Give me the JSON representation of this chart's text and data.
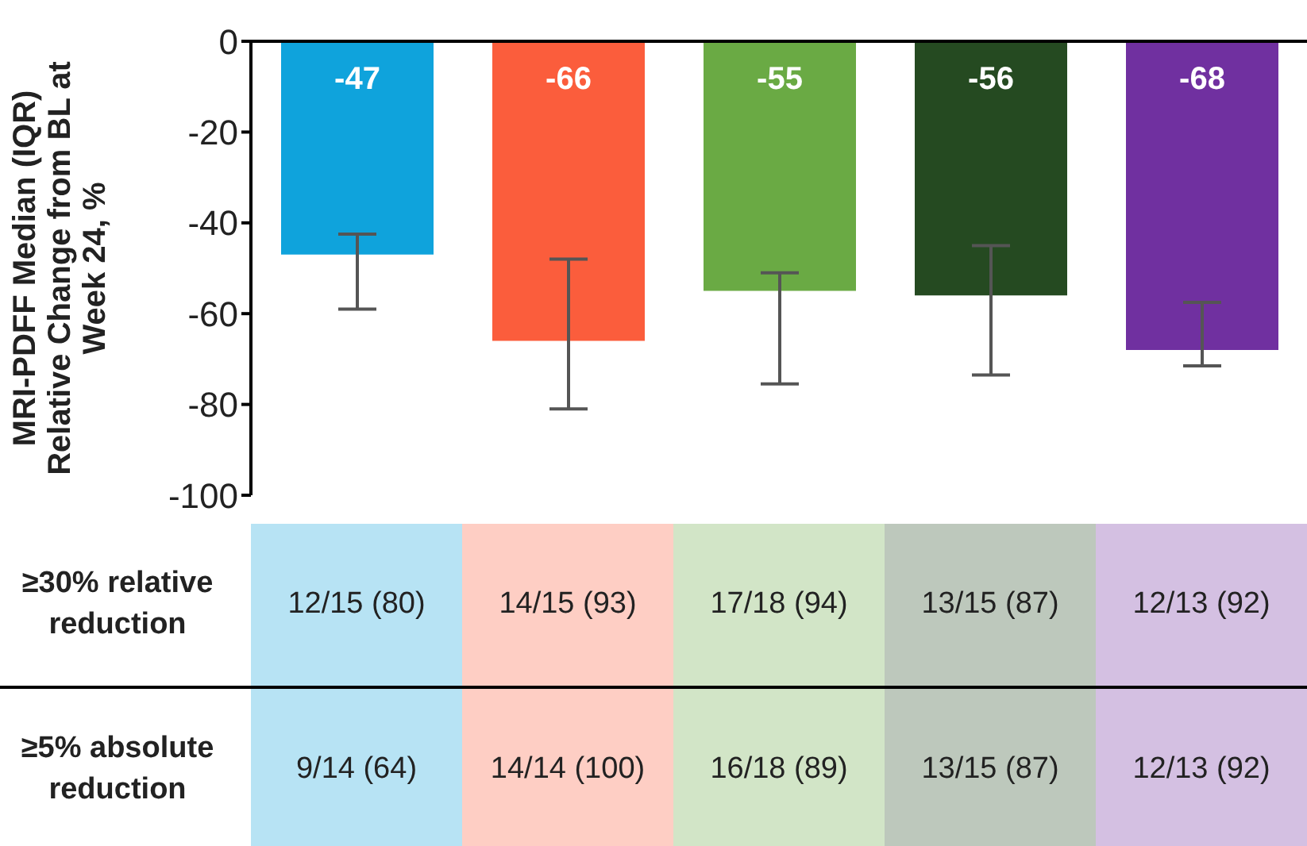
{
  "chart_data": {
    "type": "bar",
    "ylabel": "MRI-PDFF Median (IQR) Relative Change from BL at Week 24, %",
    "categories": [
      null,
      null,
      null,
      null,
      null
    ],
    "values": [
      -47,
      -66,
      -55,
      -56,
      -68
    ],
    "colors": [
      "#0fa3dc",
      "#fb5d3c",
      "#6aaa44",
      "#254a21",
      "#7030a0"
    ],
    "errors": [
      [
        -59,
        -42.5
      ],
      [
        -81,
        -48
      ],
      [
        -75.5,
        -51
      ],
      [
        -73.5,
        -45
      ],
      [
        -71.5,
        -57.5
      ]
    ],
    "data_labels": true,
    "ylim": [
      -100,
      0
    ],
    "yticks": [
      -100,
      -80,
      -60,
      -40,
      -20,
      0
    ],
    "annotations": [
      "≥30% relative reduction",
      "12/15 (80)",
      "14/15 (93)",
      "17/18 (94)",
      "13/15 (87)",
      "12/13 (92)",
      "≥5% absolute reduction",
      "9/14 (64)",
      "14/14 (100)",
      "16/18 (89)",
      "13/15 (87)",
      "12/13 (92)"
    ]
  }
}
